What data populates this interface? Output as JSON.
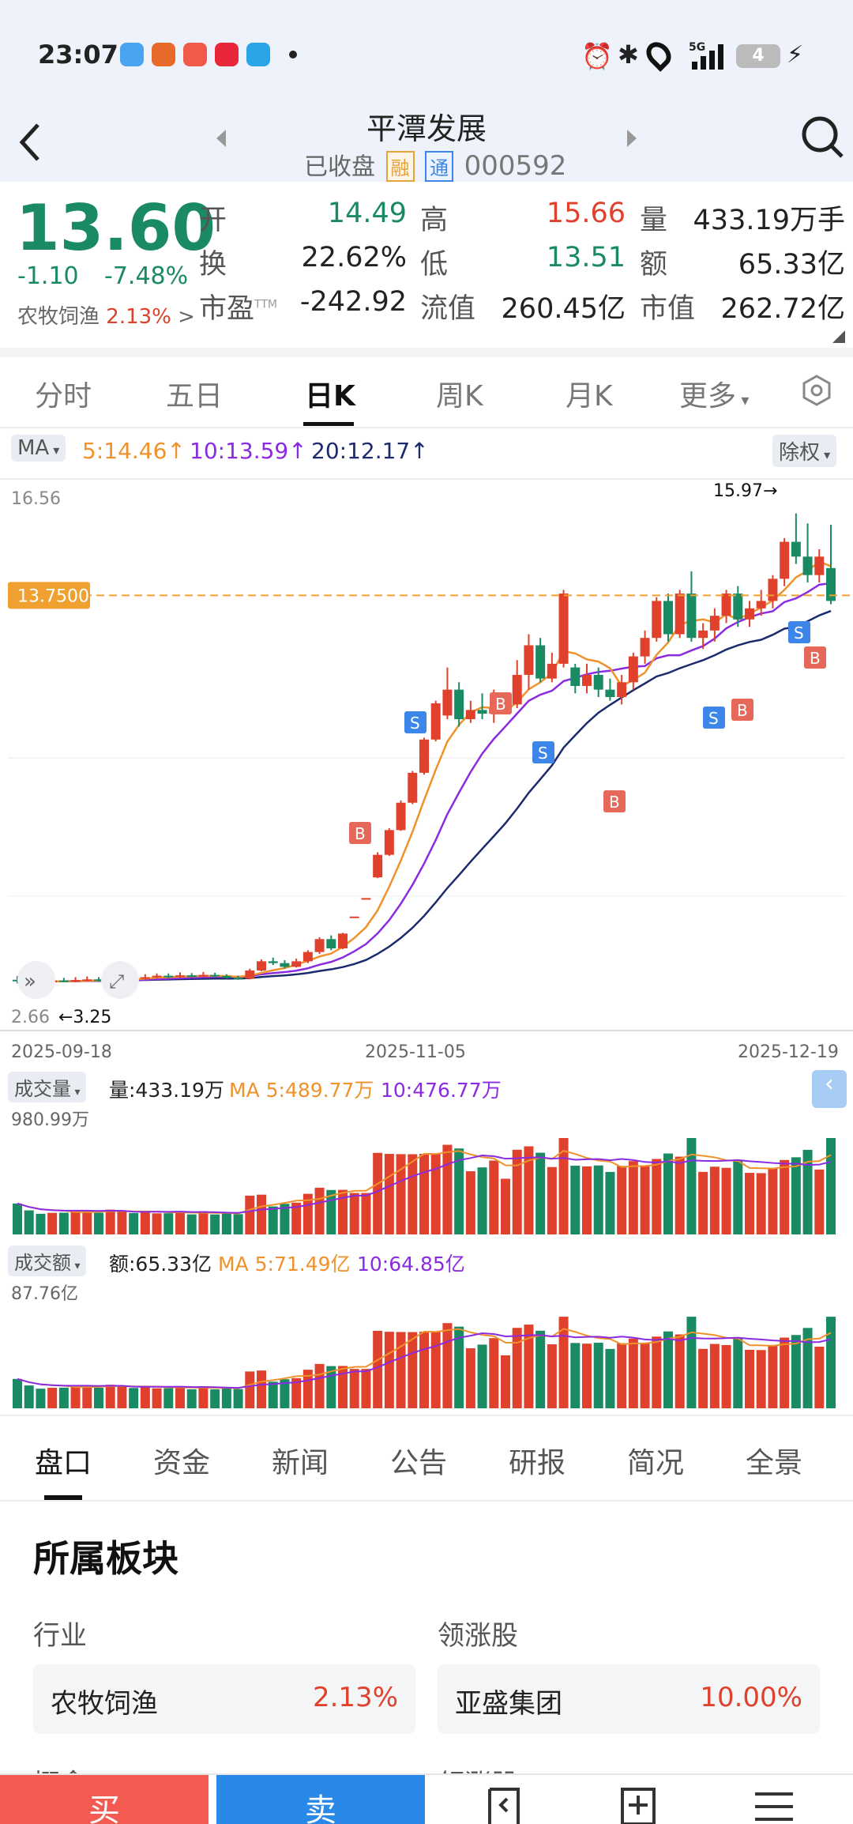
{
  "status": {
    "time": "23:07",
    "network": "5G",
    "battery": "4"
  },
  "header": {
    "title": "平潭发展",
    "state": "已收盘",
    "tag_margin": "融",
    "tag_connect": "通",
    "code": "000592"
  },
  "quote": {
    "price": "13.60",
    "change": "-1.10",
    "change_pct": "-7.48%",
    "sector_name": "农牧饲渔",
    "sector_pct": "2.13%",
    "open_label": "开",
    "open": "14.49",
    "high_label": "高",
    "high": "15.66",
    "vol_label": "量",
    "vol": "433.19万手",
    "turnover_label": "换",
    "turnover": "22.62%",
    "low_label": "低",
    "low": "13.51",
    "amount_label": "额",
    "amount": "65.33亿",
    "pe_label": "市盈",
    "pe_sup": "TTM",
    "pe": "-242.92",
    "float_label": "流值",
    "float": "260.45亿",
    "mcap_label": "市值",
    "mcap": "262.72亿"
  },
  "tabs": [
    "分时",
    "五日",
    "日K",
    "周K",
    "月K",
    "更多"
  ],
  "ma": {
    "selector": "MA",
    "ma5": "5:14.46↑",
    "ma10": "10:13.59↑",
    "ma20": "20:12.17↑",
    "adjust": "除权"
  },
  "kchart": {
    "y_top": "16.56",
    "y_bottom": "2.66",
    "ref_price": "13.7500",
    "max_label": "15.97→",
    "min_label": "←3.25",
    "dates": [
      "2025-09-18",
      "2025-11-05",
      "2025-12-19"
    ]
  },
  "volume": {
    "selector": "成交量",
    "label": "量:433.19万",
    "ma5": "MA 5:489.77万",
    "ma10": "10:476.77万",
    "scale": "980.99万"
  },
  "amount": {
    "selector": "成交额",
    "label": "额:65.33亿",
    "ma5": "MA 5:71.49亿",
    "ma10": "10:64.85亿",
    "scale": "87.76亿"
  },
  "bottom_tabs": [
    "盘口",
    "资金",
    "新闻",
    "公告",
    "研报",
    "简况",
    "全景"
  ],
  "sector": {
    "title": "所属板块",
    "industry_label": "行业",
    "leader_label": "领涨股",
    "industry_name": "农牧饲渔",
    "industry_pct": "2.13%",
    "leader_name": "亚盛集团",
    "leader_pct": "10.00%",
    "concept_label": "概念",
    "leader2_label": "领涨股"
  },
  "actions": {
    "buy": "买",
    "sell": "卖"
  },
  "colors": {
    "up": "#e0412c",
    "down": "#1a8a63",
    "ma5": "#f0922c",
    "ma10": "#8a2be2",
    "ma20": "#1c2a6e",
    "accent": "#3b86e8"
  },
  "chart_data": {
    "type": "candlestick",
    "date_labels": [
      "2025-09-18",
      "2025-11-05",
      "2025-12-19"
    ],
    "ylim": [
      2.66,
      16.56
    ],
    "reference_line": 13.75,
    "max_point": 15.97,
    "min_point": 3.25,
    "candles": [
      [
        3.35,
        3.32,
        3.45,
        3.25
      ],
      [
        3.32,
        3.3,
        3.4,
        3.26
      ],
      [
        3.3,
        3.28,
        3.36,
        3.25
      ],
      [
        3.28,
        3.33,
        3.38,
        3.26
      ],
      [
        3.33,
        3.3,
        3.4,
        3.28
      ],
      [
        3.3,
        3.34,
        3.42,
        3.28
      ],
      [
        3.34,
        3.36,
        3.44,
        3.3
      ],
      [
        3.36,
        3.32,
        3.42,
        3.3
      ],
      [
        3.32,
        3.38,
        3.45,
        3.3
      ],
      [
        3.38,
        3.4,
        3.48,
        3.34
      ],
      [
        3.4,
        3.38,
        3.46,
        3.34
      ],
      [
        3.38,
        3.42,
        3.5,
        3.36
      ],
      [
        3.42,
        3.46,
        3.52,
        3.4
      ],
      [
        3.46,
        3.43,
        3.52,
        3.4
      ],
      [
        3.43,
        3.47,
        3.55,
        3.41
      ],
      [
        3.47,
        3.44,
        3.53,
        3.42
      ],
      [
        3.44,
        3.48,
        3.56,
        3.42
      ],
      [
        3.48,
        3.45,
        3.54,
        3.43
      ],
      [
        3.45,
        3.4,
        3.5,
        3.38
      ],
      [
        3.4,
        3.38,
        3.46,
        3.35
      ],
      [
        3.38,
        3.6,
        3.65,
        3.36
      ],
      [
        3.6,
        3.85,
        3.9,
        3.58
      ],
      [
        3.85,
        3.8,
        3.95,
        3.75
      ],
      [
        3.8,
        3.7,
        3.88,
        3.66
      ],
      [
        3.7,
        3.85,
        3.92,
        3.68
      ],
      [
        3.85,
        4.1,
        4.15,
        3.8
      ],
      [
        4.1,
        4.45,
        4.5,
        4.05
      ],
      [
        4.45,
        4.2,
        4.55,
        4.15
      ],
      [
        4.2,
        4.6,
        4.62,
        4.18
      ],
      [
        5.06,
        5.06,
        5.06,
        5.06
      ],
      [
        5.56,
        5.56,
        5.56,
        5.56
      ],
      [
        6.12,
        6.73,
        6.8,
        6.1
      ],
      [
        6.73,
        7.4,
        7.45,
        6.7
      ],
      [
        7.4,
        8.14,
        8.2,
        7.38
      ],
      [
        8.14,
        8.95,
        9.0,
        8.1
      ],
      [
        8.95,
        9.85,
        9.9,
        8.9
      ],
      [
        9.85,
        10.83,
        10.9,
        9.8
      ],
      [
        10.5,
        11.2,
        11.8,
        10.4
      ],
      [
        11.2,
        10.4,
        11.4,
        10.2
      ],
      [
        10.4,
        10.65,
        10.9,
        10.3
      ],
      [
        10.65,
        10.55,
        11.1,
        10.4
      ],
      [
        10.55,
        10.7,
        11.2,
        10.3
      ],
      [
        10.7,
        10.8,
        11.0,
        10.6
      ],
      [
        10.8,
        11.6,
        12.0,
        10.7
      ],
      [
        11.6,
        12.4,
        12.7,
        11.2
      ],
      [
        12.4,
        11.5,
        12.6,
        11.4
      ],
      [
        11.5,
        11.9,
        12.2,
        11.4
      ],
      [
        11.9,
        13.8,
        13.9,
        11.8
      ],
      [
        11.8,
        11.3,
        11.9,
        11.1
      ],
      [
        11.3,
        11.6,
        11.9,
        11.1
      ],
      [
        11.6,
        11.2,
        11.8,
        11.0
      ],
      [
        11.2,
        11.0,
        11.5,
        10.9
      ],
      [
        11.0,
        11.4,
        11.6,
        10.8
      ],
      [
        11.4,
        12.1,
        12.2,
        11.2
      ],
      [
        12.1,
        12.6,
        12.8,
        11.9
      ],
      [
        12.6,
        13.6,
        13.7,
        12.5
      ],
      [
        13.6,
        12.7,
        13.8,
        12.5
      ],
      [
        12.7,
        13.8,
        13.9,
        12.6
      ],
      [
        13.8,
        12.6,
        14.4,
        12.5
      ],
      [
        12.6,
        12.8,
        13.0,
        12.3
      ],
      [
        12.8,
        13.2,
        13.4,
        12.5
      ],
      [
        13.2,
        13.8,
        13.9,
        13.0
      ],
      [
        13.8,
        13.1,
        14.0,
        12.9
      ],
      [
        13.1,
        13.4,
        13.6,
        12.9
      ],
      [
        13.4,
        13.6,
        13.9,
        13.2
      ],
      [
        13.6,
        14.2,
        14.3,
        13.4
      ],
      [
        14.2,
        15.2,
        15.3,
        14.0
      ],
      [
        15.2,
        14.8,
        15.97,
        14.6
      ],
      [
        14.8,
        14.3,
        15.7,
        14.1
      ],
      [
        14.3,
        14.8,
        15.0,
        14.1
      ],
      [
        14.49,
        13.6,
        15.66,
        13.51
      ]
    ],
    "volume_series": [
      {
        "name": "量",
        "unit": "万手",
        "last": 433.19,
        "ymax": 980.99
      },
      {
        "name": "MA 5",
        "last": 489.77
      },
      {
        "name": "10",
        "last": 476.77
      }
    ],
    "amount_series": [
      {
        "name": "额",
        "unit": "亿",
        "last": 65.33,
        "ymax": 87.76
      },
      {
        "name": "MA 5",
        "last": 71.49
      },
      {
        "name": "10",
        "last": 64.85
      }
    ]
  }
}
